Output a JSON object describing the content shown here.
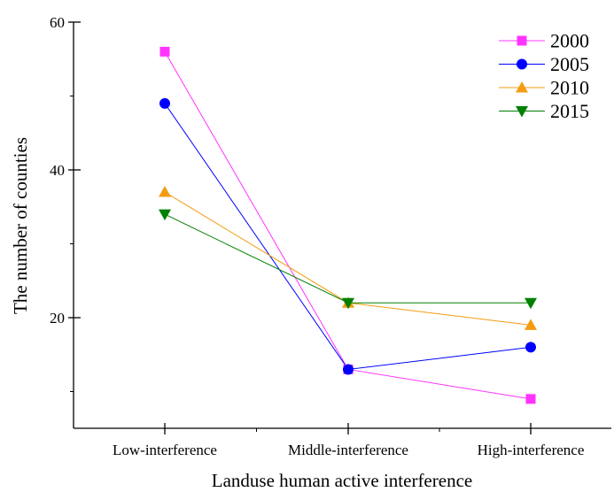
{
  "chart_data": {
    "type": "line",
    "xlabel": "Landuse human active interference",
    "ylabel": "The number of counties",
    "categories": [
      "Low-interference",
      "Middle-interference",
      "High-interference"
    ],
    "ylim": [
      5,
      60
    ],
    "yticks": [
      20,
      40,
      60
    ],
    "grid": false,
    "legend_position": "top-right",
    "series": [
      {
        "name": "2000",
        "values": [
          56,
          13,
          9
        ],
        "color": "#ff33ff",
        "marker": "square"
      },
      {
        "name": "2005",
        "values": [
          49,
          13,
          16
        ],
        "color": "#0000ff",
        "marker": "circle"
      },
      {
        "name": "2010",
        "values": [
          37,
          22,
          19
        ],
        "color": "#f39c12",
        "marker": "triangle-up"
      },
      {
        "name": "2015",
        "values": [
          34,
          22,
          22
        ],
        "color": "#008000",
        "marker": "triangle-down"
      }
    ]
  }
}
